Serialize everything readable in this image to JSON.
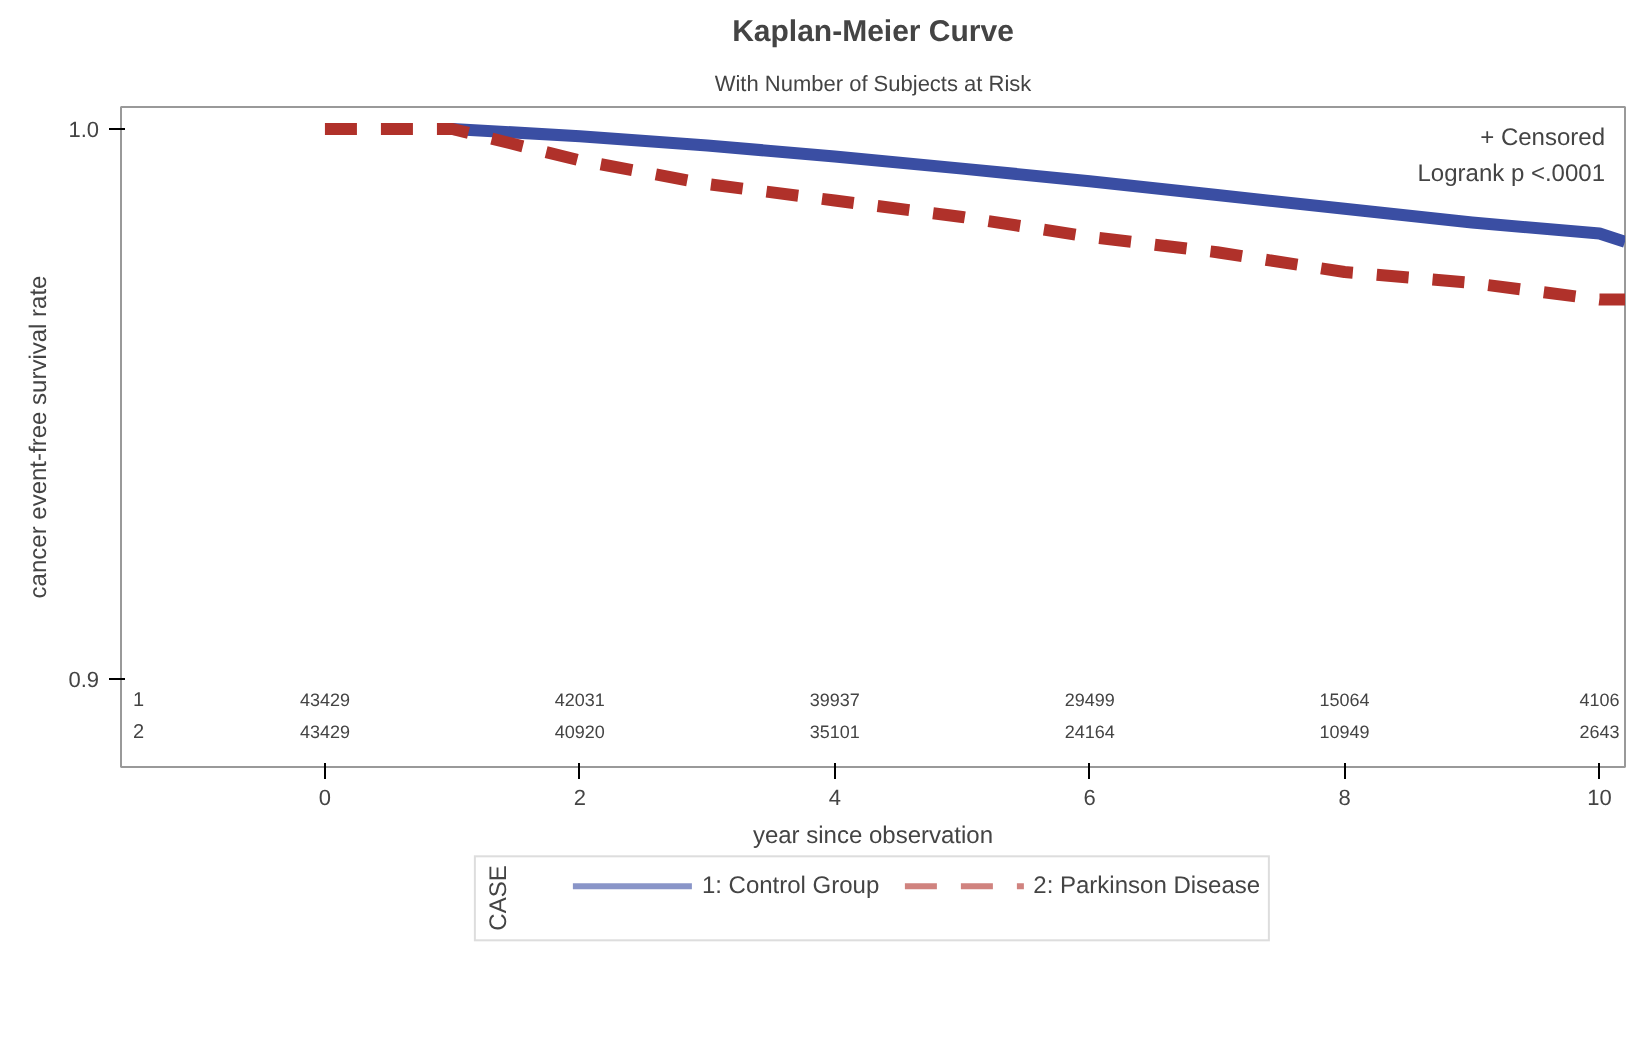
{
  "chart_data": {
    "type": "line",
    "title": "Kaplan-Meier Curve",
    "subtitle": "With Number of Subjects at Risk",
    "xlabel": "year since observation",
    "ylabel": "cancer event-free survival rate",
    "legend_title": "CASE",
    "series": [
      {
        "name": "1: Control Group",
        "color": "#3a4ea3",
        "line_style": "solid",
        "x": [
          1,
          2,
          3,
          4,
          5,
          6,
          7,
          8,
          9,
          10,
          10.2
        ],
        "values": [
          1.0,
          0.9987,
          0.997,
          0.995,
          0.9928,
          0.9905,
          0.988,
          0.9855,
          0.983,
          0.981,
          0.9795
        ]
      },
      {
        "name": "2: Parkinson Disease",
        "color": "#b0312a",
        "line_style": "dashed",
        "x": [
          0,
          1,
          2,
          3,
          4,
          5,
          6,
          7,
          8,
          9,
          10,
          10.2
        ],
        "values": [
          1.0,
          1.0,
          0.9943,
          0.99,
          0.987,
          0.984,
          0.9804,
          0.9776,
          0.974,
          0.972,
          0.969,
          0.969
        ]
      }
    ],
    "xlim": [
      -1.6,
      10.2
    ],
    "ylim": [
      0.884,
      1.004
    ],
    "xticks": [
      0,
      2,
      4,
      6,
      8,
      10
    ],
    "yticks": [
      {
        "value": 0.9,
        "label": "0.9"
      },
      {
        "value": 1.0,
        "label": "1.0"
      }
    ],
    "grid": false,
    "legend": "bottom",
    "annotations": [
      "+ Censored",
      "Logrank p <.0001",
      "1",
      "43429",
      "42031",
      "39937",
      "29499",
      "15064",
      "4106",
      "2",
      "43429",
      "40920",
      "35101",
      "24164",
      "10949",
      "2643"
    ]
  }
}
